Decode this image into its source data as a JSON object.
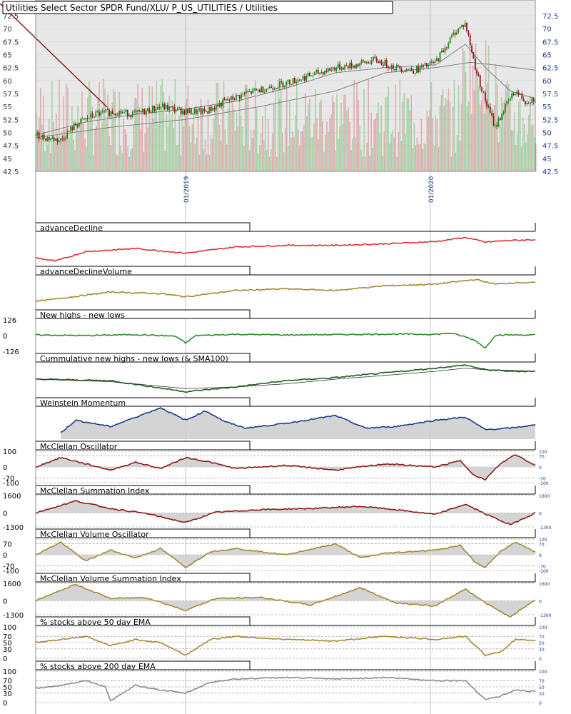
{
  "colors": {
    "panel_bg": "#e8e8e8",
    "grid": "#9a9a9a",
    "candle_up": "#1f8a1f",
    "candle_down": "#8b1a1a",
    "volume_up": "#9ccc9c",
    "volume_down": "#d9a3a3",
    "sma": "#808080",
    "trend_line": "#8b1a1a",
    "red": "#e03030",
    "olive": "#a08a30",
    "green": "#2a8a2a",
    "dark_green": "#1b5e20",
    "navy": "#1f3a8a",
    "dark_red": "#8b1a1a",
    "gray": "#8a8a8a",
    "fill": "#cfcfcf"
  },
  "chart_data": [
    {
      "id": "price",
      "type": "candlestick",
      "title": "Utilities Select Sector SPDR Fund/XLU/ P_US_UTILITIES / Utilities",
      "y_ticks": [
        "72.5",
        "70",
        "67.5",
        "65",
        "62.5",
        "60",
        "57.5",
        "55",
        "52.5",
        "50",
        "47.5",
        "45",
        "42.5"
      ],
      "ylim": [
        42.5,
        72.5
      ],
      "x_ticks": [
        "01/2019",
        "01/2020"
      ],
      "x_tick_pos": [
        0.3,
        0.79
      ],
      "series": [
        {
          "name": "price",
          "x": [
            0,
            0.02,
            0.05,
            0.08,
            0.12,
            0.16,
            0.2,
            0.25,
            0.3,
            0.34,
            0.38,
            0.42,
            0.46,
            0.5,
            0.55,
            0.6,
            0.64,
            0.68,
            0.72,
            0.76,
            0.8,
            0.84,
            0.86,
            0.88,
            0.9,
            0.92,
            0.94,
            0.96,
            0.98,
            1.0
          ],
          "values": [
            49.5,
            49,
            48.5,
            51.5,
            53.5,
            54,
            53.5,
            55,
            54,
            54,
            56,
            57.5,
            58.5,
            59.5,
            61,
            62.5,
            63,
            64,
            62.5,
            62,
            63.5,
            69.5,
            71,
            62.5,
            56,
            51,
            55,
            58,
            56,
            56.5
          ]
        },
        {
          "name": "SMA50",
          "x": [
            0,
            0.1,
            0.2,
            0.3,
            0.4,
            0.5,
            0.6,
            0.7,
            0.8,
            0.86,
            0.9,
            0.95,
            1.0
          ],
          "values": [
            49.5,
            52,
            53.5,
            54.5,
            56,
            58.5,
            61.5,
            62.5,
            63,
            67,
            62.5,
            58,
            56.5
          ]
        },
        {
          "name": "SMA200",
          "x": [
            0,
            0.15,
            0.3,
            0.45,
            0.6,
            0.7,
            0.8,
            0.87,
            0.92,
            1.0
          ],
          "values": [
            49,
            51,
            52.5,
            55,
            58,
            61.5,
            62.5,
            63.5,
            63,
            62
          ]
        }
      ]
    },
    {
      "id": "advanceDecline",
      "type": "line",
      "title": "advanceDecline",
      "x": [
        0,
        0.04,
        0.1,
        0.2,
        0.3,
        0.4,
        0.5,
        0.6,
        0.7,
        0.8,
        0.86,
        0.9,
        0.94,
        1.0
      ],
      "values": [
        0.2,
        0.1,
        0.4,
        0.5,
        0.35,
        0.55,
        0.6,
        0.6,
        0.65,
        0.72,
        0.85,
        0.7,
        0.75,
        0.78
      ]
    },
    {
      "id": "advanceDeclineVolume",
      "type": "line",
      "title": "advanceDeclineVolume",
      "x": [
        0,
        0.05,
        0.15,
        0.25,
        0.3,
        0.4,
        0.5,
        0.6,
        0.7,
        0.8,
        0.88,
        0.92,
        0.96,
        1.0
      ],
      "values": [
        0.2,
        0.3,
        0.5,
        0.45,
        0.35,
        0.55,
        0.6,
        0.55,
        0.7,
        0.75,
        0.9,
        0.75,
        0.8,
        0.8
      ]
    },
    {
      "id": "newHighsLows",
      "type": "line",
      "title": "New highs - new lows",
      "y_ticks": [
        "126",
        "0",
        "-126"
      ],
      "ylim": [
        -126,
        126
      ],
      "x": [
        0,
        0.1,
        0.2,
        0.28,
        0.3,
        0.32,
        0.4,
        0.5,
        0.6,
        0.7,
        0.8,
        0.83,
        0.86,
        0.88,
        0.9,
        0.92,
        1.0
      ],
      "values": [
        5,
        0,
        8,
        -5,
        -60,
        0,
        10,
        5,
        8,
        12,
        10,
        20,
        -10,
        -40,
        -100,
        5,
        5
      ]
    },
    {
      "id": "cumulativeNHNL",
      "type": "line",
      "title": "Cummulative new highs - new lows (& SMA100)",
      "x": [
        0,
        0.15,
        0.3,
        0.4,
        0.5,
        0.6,
        0.7,
        0.8,
        0.86,
        0.9,
        0.95,
        1.0
      ],
      "values": [
        0.5,
        0.45,
        0.1,
        0.25,
        0.45,
        0.55,
        0.7,
        0.85,
        0.95,
        0.8,
        0.75,
        0.75
      ],
      "sma": [
        0.5,
        0.42,
        0.2,
        0.25,
        0.35,
        0.5,
        0.62,
        0.75,
        0.85,
        0.8,
        0.78,
        0.75
      ]
    },
    {
      "id": "weinstein",
      "type": "area",
      "title": "Weinstein Momentum",
      "x": [
        0.05,
        0.08,
        0.15,
        0.2,
        0.25,
        0.3,
        0.34,
        0.38,
        0.42,
        0.5,
        0.6,
        0.66,
        0.72,
        0.8,
        0.86,
        0.9,
        0.95,
        1.0
      ],
      "values": [
        0.2,
        0.6,
        0.4,
        0.7,
        1.0,
        0.6,
        0.9,
        0.55,
        0.35,
        0.5,
        0.75,
        0.35,
        0.4,
        0.6,
        0.7,
        0.3,
        0.35,
        0.45
      ]
    },
    {
      "id": "mcclellanOsc",
      "type": "area",
      "title": "McClellan Oscillator",
      "y_ticks": [
        "100",
        "0",
        "-70",
        "-100"
      ],
      "ylim": [
        -100,
        100
      ],
      "right_ticks": [
        "100",
        "70",
        "0",
        "-70",
        "-100"
      ],
      "x": [
        0,
        0.05,
        0.1,
        0.15,
        0.2,
        0.25,
        0.3,
        0.35,
        0.4,
        0.5,
        0.6,
        0.7,
        0.8,
        0.85,
        0.88,
        0.9,
        0.93,
        0.96,
        1.0
      ],
      "values": [
        0,
        60,
        20,
        -20,
        30,
        -10,
        60,
        30,
        -10,
        10,
        -20,
        20,
        0,
        40,
        -60,
        -80,
        20,
        80,
        10
      ]
    },
    {
      "id": "mcclellanSum",
      "type": "area",
      "title": "McClellan Summation Index",
      "y_ticks": [
        "1600",
        "0",
        "-1300"
      ],
      "ylim": [
        -1300,
        1600
      ],
      "right_ticks": [
        "1600",
        "0",
        "-1300"
      ],
      "x": [
        0,
        0.08,
        0.15,
        0.22,
        0.3,
        0.36,
        0.45,
        0.55,
        0.65,
        0.72,
        0.8,
        0.86,
        0.9,
        0.95,
        1.0
      ],
      "values": [
        0,
        1100,
        400,
        -50,
        -900,
        50,
        300,
        400,
        600,
        300,
        -150,
        800,
        -100,
        -1100,
        0
      ]
    },
    {
      "id": "mcclellanVolOsc",
      "type": "area",
      "title": "McClellan Volume Oscillator",
      "y_ticks": [
        "70",
        "0",
        "-70",
        "-100"
      ],
      "ylim": [
        -100,
        100
      ],
      "right_ticks": [
        "100",
        "70",
        "0",
        "-70",
        "-100"
      ],
      "x": [
        0,
        0.05,
        0.1,
        0.15,
        0.2,
        0.25,
        0.3,
        0.35,
        0.4,
        0.5,
        0.6,
        0.65,
        0.7,
        0.8,
        0.85,
        0.88,
        0.9,
        0.93,
        0.96,
        1.0
      ],
      "values": [
        0,
        80,
        -40,
        30,
        -20,
        40,
        -80,
        20,
        40,
        0,
        70,
        -20,
        10,
        30,
        60,
        -50,
        -80,
        20,
        80,
        20
      ]
    },
    {
      "id": "mcclellanVolSum",
      "type": "area",
      "title": "McClellan Volume Summation Index",
      "y_ticks": [
        "1600",
        "0",
        "-1300"
      ],
      "ylim": [
        -1300,
        1600
      ],
      "right_ticks": [
        "1600",
        "0",
        "-1300"
      ],
      "x": [
        0,
        0.08,
        0.15,
        0.22,
        0.3,
        0.36,
        0.45,
        0.55,
        0.65,
        0.72,
        0.8,
        0.86,
        0.9,
        0.95,
        1.0
      ],
      "values": [
        0,
        1500,
        200,
        300,
        -900,
        200,
        300,
        -400,
        1200,
        -200,
        -500,
        1100,
        -200,
        -1500,
        100
      ]
    },
    {
      "id": "pct50",
      "type": "line",
      "title": "% stocks above 50 day EMA",
      "y_ticks": [
        "100",
        "70",
        "50",
        "30",
        "0"
      ],
      "ylim": [
        0,
        100
      ],
      "right_ticks": [
        "100",
        "70",
        "50",
        "30",
        "0"
      ],
      "x": [
        0,
        0.05,
        0.1,
        0.15,
        0.2,
        0.25,
        0.3,
        0.35,
        0.4,
        0.5,
        0.6,
        0.7,
        0.8,
        0.86,
        0.88,
        0.9,
        0.93,
        0.96,
        1.0
      ],
      "values": [
        50,
        60,
        70,
        40,
        60,
        50,
        10,
        60,
        70,
        60,
        55,
        70,
        60,
        70,
        40,
        10,
        20,
        60,
        55
      ]
    },
    {
      "id": "pct200",
      "type": "line",
      "title": "% stocks above 200 day EMA",
      "y_ticks": [
        "100",
        "70",
        "50",
        "30",
        "0"
      ],
      "ylim": [
        0,
        100
      ],
      "right_ticks": [
        "100",
        "70",
        "50",
        "30",
        "0"
      ],
      "x": [
        0,
        0.05,
        0.1,
        0.14,
        0.15,
        0.2,
        0.25,
        0.3,
        0.35,
        0.4,
        0.5,
        0.6,
        0.7,
        0.8,
        0.86,
        0.9,
        0.93,
        0.96,
        1.0
      ],
      "values": [
        45,
        55,
        70,
        50,
        5,
        55,
        40,
        30,
        65,
        75,
        80,
        75,
        80,
        70,
        70,
        10,
        20,
        40,
        35
      ]
    }
  ]
}
